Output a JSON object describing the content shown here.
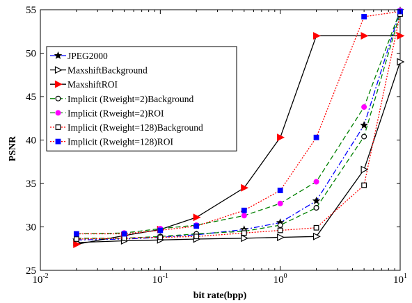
{
  "chart_data": {
    "type": "line",
    "xlabel": "bit rate(bpp)",
    "ylabel": "PSNR",
    "xscale": "log",
    "xlim": [
      0.01,
      10
    ],
    "ylim": [
      25,
      55
    ],
    "grid": false,
    "legend_position": "top-left",
    "x_ticks": [
      {
        "value": 0.01,
        "base": "10",
        "exp": "-2"
      },
      {
        "value": 0.1,
        "base": "10",
        "exp": "-1"
      },
      {
        "value": 1,
        "base": "10",
        "exp": "0"
      },
      {
        "value": 10,
        "base": "10",
        "exp": "1"
      }
    ],
    "y_ticks": [
      25,
      30,
      35,
      40,
      45,
      50,
      55
    ],
    "x": [
      0.02,
      0.05,
      0.1,
      0.2,
      0.5,
      1,
      2,
      5,
      10
    ],
    "series": [
      {
        "name": "JPEG2000",
        "color": "#0000ff",
        "dash": "dashdot",
        "marker": "star-filled",
        "marker_color": "#000000",
        "values": [
          28.5,
          28.6,
          28.8,
          29.1,
          29.7,
          30.5,
          33.0,
          41.7,
          54.9
        ]
      },
      {
        "name": "MaxshiftBackground",
        "color": "#000000",
        "dash": "solid",
        "marker": "triangle-right-open",
        "marker_color": "#000000",
        "values": [
          28.2,
          28.4,
          28.5,
          28.6,
          28.7,
          28.8,
          28.9,
          36.6,
          49.0
        ]
      },
      {
        "name": "MaxshiftROI",
        "color": "#000000",
        "dash": "solid",
        "marker": "triangle-right-filled",
        "marker_color": "#ff0000",
        "values": [
          28.0,
          29.0,
          29.7,
          31.1,
          34.5,
          40.3,
          52.0,
          52.0,
          52.0
        ]
      },
      {
        "name": "Implicit (Rweight=2)Background",
        "color": "#008000",
        "dash": "dashed",
        "marker": "circle-open",
        "marker_color": "#000000",
        "values": [
          28.7,
          28.7,
          28.9,
          29.2,
          29.5,
          30.2,
          32.2,
          40.4,
          54.6
        ]
      },
      {
        "name": "Implicit (Rweight=2)ROI",
        "color": "#008000",
        "dash": "dashed",
        "marker": "circle-filled",
        "marker_color": "#ff00ff",
        "values": [
          29.2,
          29.3,
          29.8,
          30.2,
          31.3,
          32.7,
          35.2,
          43.8,
          54.9
        ]
      },
      {
        "name": "Implicit (Rweight=128)Background",
        "color": "#ff0000",
        "dash": "dotted",
        "marker": "square-open",
        "marker_color": "#000000",
        "values": [
          28.6,
          28.7,
          28.8,
          28.9,
          29.3,
          29.6,
          29.9,
          34.8,
          54.5
        ]
      },
      {
        "name": "Implicit (Rweight=128)ROI",
        "color": "#ff0000",
        "dash": "dotted",
        "marker": "square-filled",
        "marker_color": "#0000ff",
        "values": [
          29.2,
          29.2,
          29.6,
          30.1,
          31.9,
          34.2,
          40.3,
          54.2,
          54.8
        ]
      }
    ]
  }
}
